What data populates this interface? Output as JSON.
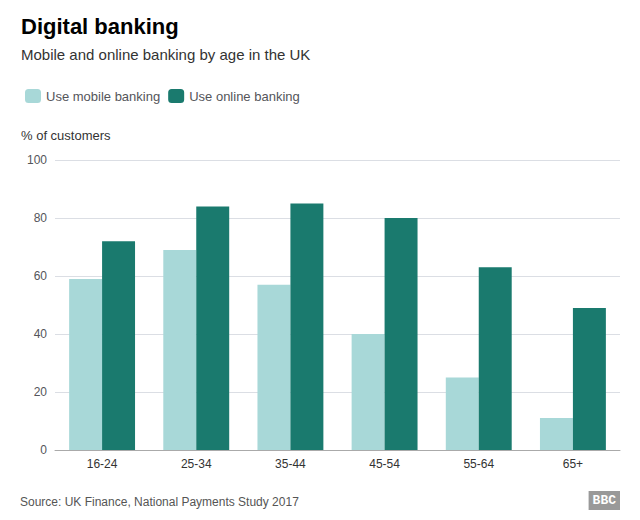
{
  "chart_data": {
    "type": "bar",
    "title": "Digital banking",
    "subtitle": "Mobile and online banking by age in the UK",
    "ylabel": "% of customers",
    "annotations": [
      "Source: UK Finance, National Payments Study 2017",
      "BBC"
    ],
    "categories": [
      "16-24",
      "25-34",
      "35-44",
      "45-54",
      "55-64",
      "65+"
    ],
    "series": [
      {
        "name": "Use mobile banking",
        "color": "#a8d8d8",
        "values": [
          59,
          69,
          57,
          40,
          25,
          11
        ]
      },
      {
        "name": "Use online banking",
        "color": "#1a7a6e",
        "values": [
          72,
          84,
          85,
          80,
          63,
          49
        ]
      }
    ],
    "ylim": [
      0,
      100
    ],
    "yticks": [
      0,
      20,
      40,
      60,
      80,
      100
    ],
    "grid": true,
    "legend": "upper left"
  }
}
